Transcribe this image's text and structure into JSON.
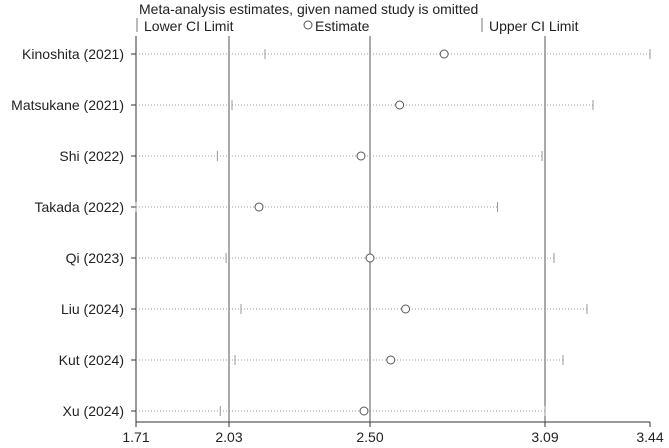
{
  "chart_data": {
    "type": "scatter",
    "title": "Meta-analysis estimates, given named study is omitted",
    "legend": {
      "placement": "top",
      "items": [
        {
          "symbol": "tick",
          "label": "Lower CI Limit"
        },
        {
          "symbol": "circle",
          "label": "Estimate"
        },
        {
          "symbol": "tick",
          "label": "Upper CI Limit"
        }
      ]
    },
    "x_ticks": [
      {
        "value": 1.71,
        "label": "1.71"
      },
      {
        "value": 2.03,
        "label": "2.03"
      },
      {
        "value": 2.5,
        "label": "2.50"
      },
      {
        "value": 3.09,
        "label": "3.09"
      },
      {
        "value": 3.44,
        "label": "3.44"
      }
    ],
    "reference_lines": [
      2.03,
      2.5,
      3.09
    ],
    "xlim": [
      1.71,
      3.44
    ],
    "grid": false,
    "studies": [
      {
        "name": "Kinoshita (2021)",
        "lower": 2.15,
        "estimate": 2.75,
        "upper": 3.44
      },
      {
        "name": "Matsukane (2021)",
        "lower": 2.04,
        "estimate": 2.6,
        "upper": 3.25
      },
      {
        "name": "Shi (2022)",
        "lower": 1.99,
        "estimate": 2.47,
        "upper": 3.08
      },
      {
        "name": "Takada (2022)",
        "lower": 1.71,
        "estimate": 2.13,
        "upper": 2.93
      },
      {
        "name": "Qi (2023)",
        "lower": 2.02,
        "estimate": 2.5,
        "upper": 3.12
      },
      {
        "name": "Liu (2024)",
        "lower": 2.07,
        "estimate": 2.62,
        "upper": 3.23
      },
      {
        "name": "Kut (2024)",
        "lower": 2.05,
        "estimate": 2.57,
        "upper": 3.15
      },
      {
        "name": "Xu (2024)",
        "lower": 2.0,
        "estimate": 2.48,
        "upper": 3.09
      }
    ]
  },
  "colors": {
    "axis": "#333333",
    "reference_line": "#555555",
    "ci_dots": "#999999",
    "marker": "#555555",
    "text": "#222222"
  }
}
